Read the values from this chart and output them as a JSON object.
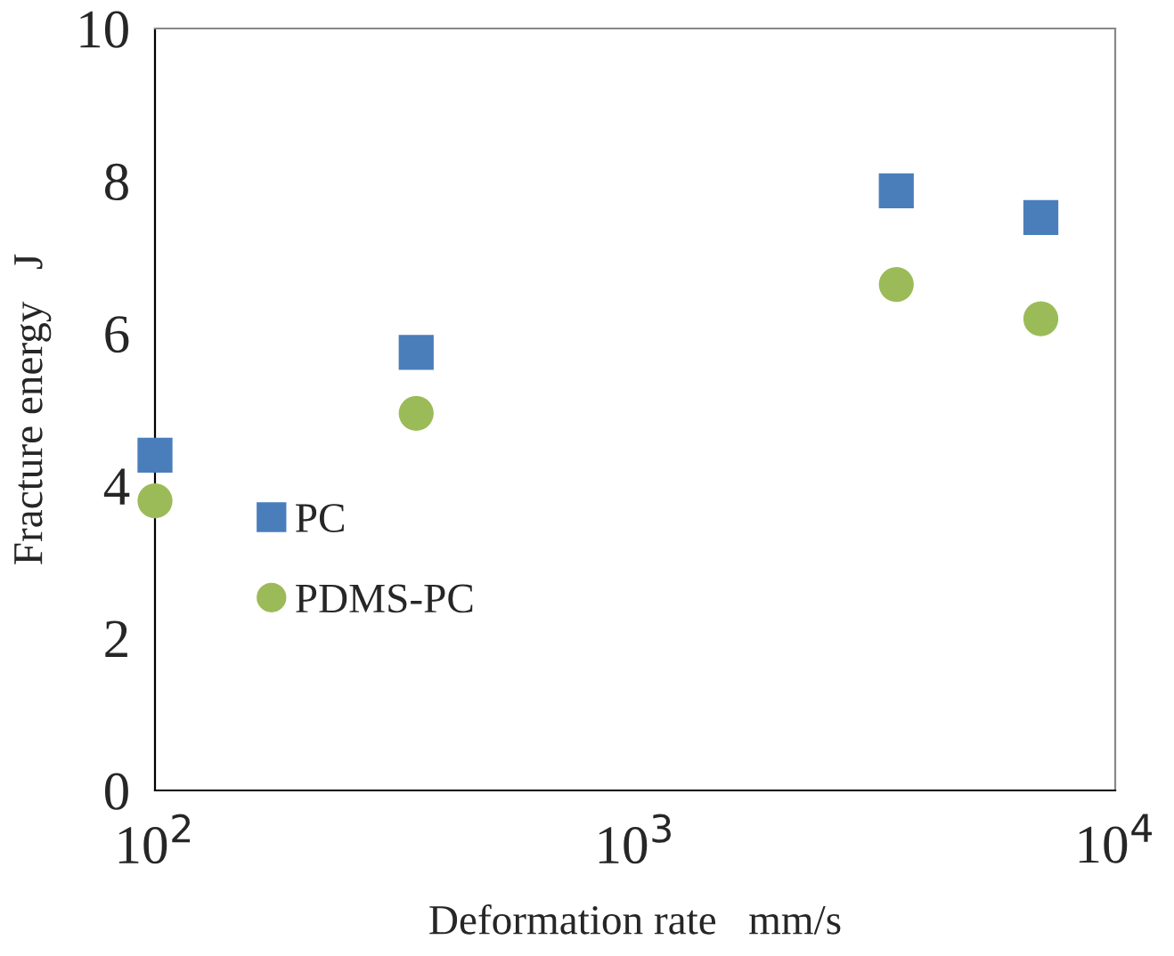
{
  "chart_data": {
    "type": "scatter",
    "xlabel": "Deformation rate   mm/s",
    "ylabel": "Fracture energy   J",
    "log": "x",
    "xlim": [
      100,
      10000
    ],
    "xticks": [
      {
        "value": 100,
        "label": "10$^{2}$"
      },
      {
        "value": 1000,
        "label": "10$^{3}$"
      },
      {
        "value": 10000,
        "label": "10$^{4}$"
      }
    ],
    "ylim": [
      0,
      10
    ],
    "yticks": [
      0,
      2,
      4,
      6,
      8,
      10
    ],
    "grid": false,
    "legend": "left",
    "series": [
      {
        "name": "PC",
        "color": "#4a7ebb",
        "marker": "square",
        "x": [
          100,
          350,
          3500,
          7000
        ],
        "values": [
          4.4,
          5.75,
          7.87,
          7.52
        ]
      },
      {
        "name": "PDMS-PC",
        "color": "#9bbb59",
        "marker": "circle",
        "x": [
          100,
          350,
          3500,
          7000
        ],
        "values": [
          3.8,
          4.95,
          6.64,
          6.19
        ]
      }
    ]
  }
}
